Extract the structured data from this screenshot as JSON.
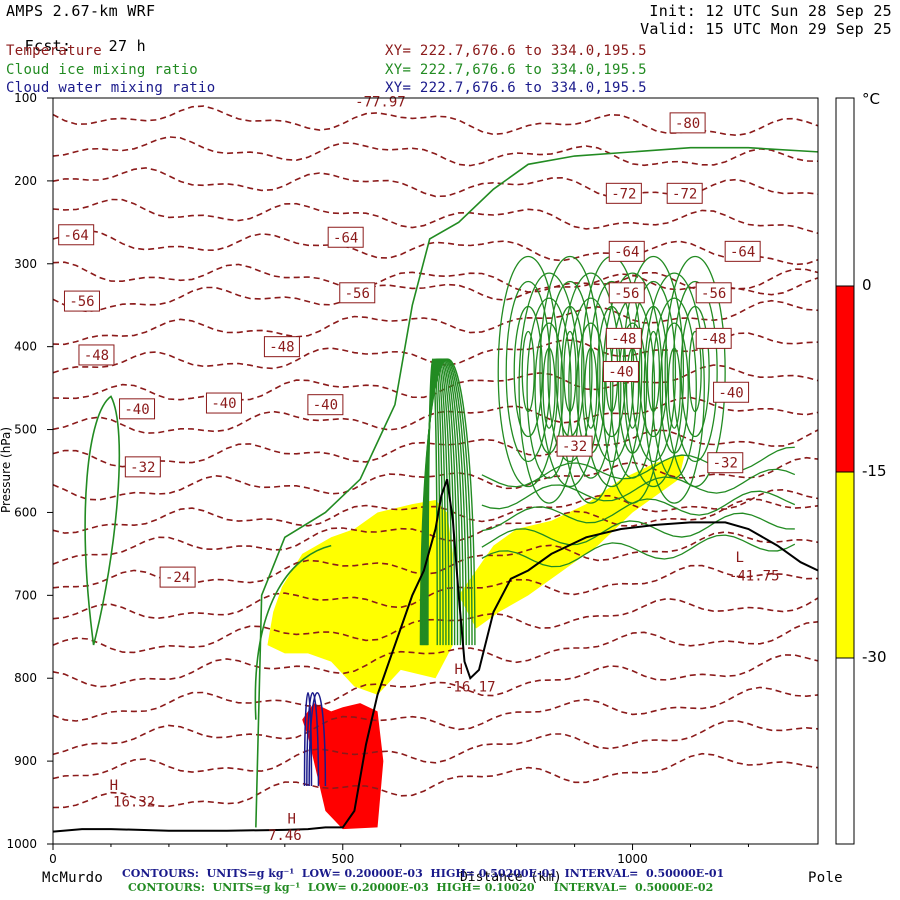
{
  "header": {
    "model": "AMPS 2.67-km WRF",
    "fcst_label": "Fcst:",
    "fcst_value": "27 h",
    "init": "Init: 12 UTC Sun 28 Sep 25",
    "valid": "Valid: 15 UTC Mon 29 Sep 25"
  },
  "fields": [
    {
      "name": "Temperature",
      "xy": "XY= 222.7,676.6 to 334.0,195.5",
      "color": "#8b1a1a"
    },
    {
      "name": "Cloud ice mixing ratio",
      "xy": "XY= 222.7,676.6 to 334.0,195.5",
      "color": "#228b22"
    },
    {
      "name": "Cloud water mixing ratio",
      "xy": "XY= 222.7,676.6 to 334.0,195.5",
      "color": "#1a1a8b"
    }
  ],
  "footer": {
    "start_label": "McMurdo",
    "end_label": "Pole",
    "water_contours": "CONTOURS:  UNITS=g kg⁻¹  LOW= 0.20000E-03  HIGH= 0.50200E-01  INTERVAL=  0.50000E-01",
    "ice_contours": "CONTOURS:  UNITS=g kg⁻¹  LOW= 0.20000E-03  HIGH= 0.10020     INTERVAL=  0.50000E-02",
    "xlabel_overlap": "Distance (km)",
    "xlabel_hidden": "00E+03"
  },
  "colorbar": {
    "unit": "°C",
    "labels": [
      "0",
      "-15",
      "-30"
    ],
    "colors": [
      "#ff0000",
      "#ffff00"
    ]
  },
  "chart_data": {
    "type": "contour",
    "title": "",
    "xlabel": "Distance (km)",
    "ylabel": "Pressure (hPa)",
    "xlim": [
      0,
      1320
    ],
    "ylim": [
      1000,
      100
    ],
    "x_ticks": [
      "0",
      "500",
      "1000"
    ],
    "y_ticks": [
      "100",
      "200",
      "300",
      "400",
      "500",
      "600",
      "700",
      "800",
      "900",
      "1000"
    ],
    "temperature_labels": [
      {
        "text": "-80",
        "x": 1095,
        "p": 130
      },
      {
        "text": "-72",
        "x": 985,
        "p": 215
      },
      {
        "text": "-72",
        "x": 1090,
        "p": 215
      },
      {
        "text": "-64",
        "x": 40,
        "p": 265
      },
      {
        "text": "-64",
        "x": 505,
        "p": 268
      },
      {
        "text": "-64",
        "x": 990,
        "p": 285
      },
      {
        "text": "-64",
        "x": 1190,
        "p": 285
      },
      {
        "text": "-56",
        "x": 50,
        "p": 345
      },
      {
        "text": "-56",
        "x": 525,
        "p": 335
      },
      {
        "text": "-56",
        "x": 990,
        "p": 335
      },
      {
        "text": "-56",
        "x": 1140,
        "p": 335
      },
      {
        "text": "-48",
        "x": 75,
        "p": 410
      },
      {
        "text": "-48",
        "x": 395,
        "p": 400
      },
      {
        "text": "-48",
        "x": 1140,
        "p": 390
      },
      {
        "text": "-40",
        "x": 145,
        "p": 475
      },
      {
        "text": "-40",
        "x": 295,
        "p": 468
      },
      {
        "text": "-40",
        "x": 470,
        "p": 470
      },
      {
        "text": "-40",
        "x": 1170,
        "p": 455
      },
      {
        "text": "-32",
        "x": 155,
        "p": 545
      },
      {
        "text": "-32",
        "x": 900,
        "p": 520
      },
      {
        "text": "-32",
        "x": 1160,
        "p": 540
      },
      {
        "text": "-24",
        "x": 215,
        "p": 678
      },
      {
        "text": "-48",
        "x": 985,
        "p": 390
      },
      {
        "text": "-40",
        "x": 980,
        "p": 430
      }
    ],
    "annotations": [
      {
        "text": "-77.97",
        "x": 565,
        "p": 110
      },
      {
        "text": "H",
        "x": 105,
        "p": 935
      },
      {
        "text": "16.32",
        "x": 140,
        "p": 955
      },
      {
        "text": "H",
        "x": 412,
        "p": 975
      },
      {
        "text": "7.46",
        "x": 400,
        "p": 995
      },
      {
        "text": "H",
        "x": 700,
        "p": 795
      },
      {
        "text": "-16.17",
        "x": 720,
        "p": 816
      },
      {
        "text": "L",
        "x": 1185,
        "p": 660
      },
      {
        "text": "-41.75",
        "x": 1210,
        "p": 682
      }
    ],
    "terrain_p": [
      [
        0,
        985
      ],
      [
        50,
        982
      ],
      [
        100,
        982
      ],
      [
        150,
        983
      ],
      [
        200,
        984
      ],
      [
        300,
        984
      ],
      [
        400,
        983
      ],
      [
        440,
        982
      ],
      [
        470,
        980
      ],
      [
        500,
        980
      ],
      [
        520,
        960
      ],
      [
        540,
        880
      ],
      [
        560,
        820
      ],
      [
        580,
        780
      ],
      [
        600,
        740
      ],
      [
        620,
        700
      ],
      [
        640,
        670
      ],
      [
        660,
        620
      ],
      [
        670,
        580
      ],
      [
        680,
        560
      ],
      [
        690,
        610
      ],
      [
        700,
        700
      ],
      [
        710,
        780
      ],
      [
        720,
        800
      ],
      [
        735,
        790
      ],
      [
        760,
        720
      ],
      [
        790,
        680
      ],
      [
        820,
        670
      ],
      [
        860,
        650
      ],
      [
        920,
        630
      ],
      [
        980,
        620
      ],
      [
        1040,
        615
      ],
      [
        1100,
        612
      ],
      [
        1160,
        612
      ],
      [
        1200,
        620
      ],
      [
        1250,
        640
      ],
      [
        1290,
        660
      ],
      [
        1320,
        670
      ]
    ]
  }
}
